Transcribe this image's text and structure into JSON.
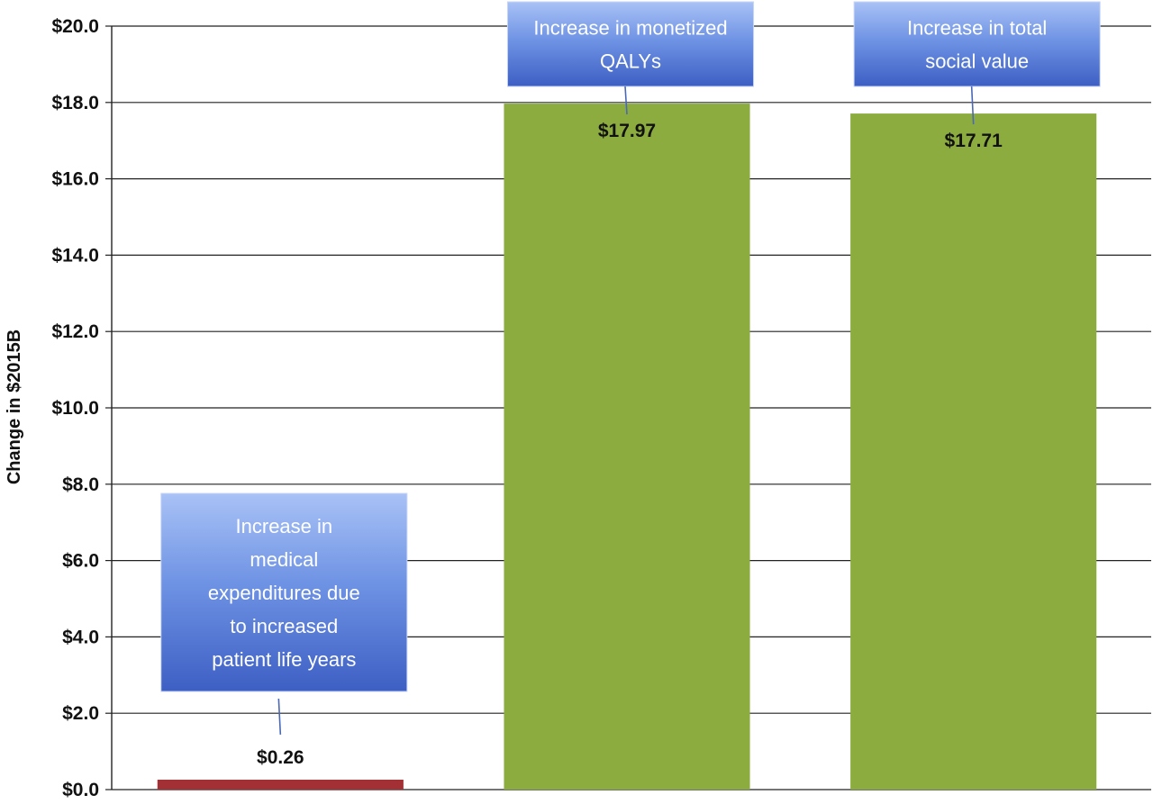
{
  "chart_data": {
    "type": "bar",
    "ylabel": "Change in $2015B",
    "ylim": [
      0,
      20
    ],
    "yticks": [
      "$0.0",
      "$2.0",
      "$4.0",
      "$6.0",
      "$8.0",
      "$10.0",
      "$12.0",
      "$14.0",
      "$16.0",
      "$18.0",
      "$20.0"
    ],
    "grid": true,
    "bars": [
      {
        "value": 0.26,
        "data_label": "$0.26",
        "color": "#a33034",
        "callout": [
          "Increase in",
          "medical",
          "expenditures due",
          "to increased",
          "patient life years"
        ]
      },
      {
        "value": 17.97,
        "data_label": "$17.97",
        "color": "#8cac3f",
        "callout": [
          "Increase in monetized",
          "QALYs"
        ]
      },
      {
        "value": 17.71,
        "data_label": "$17.71",
        "color": "#8cac3f",
        "callout": [
          "Increase in total",
          "social value"
        ]
      }
    ]
  }
}
